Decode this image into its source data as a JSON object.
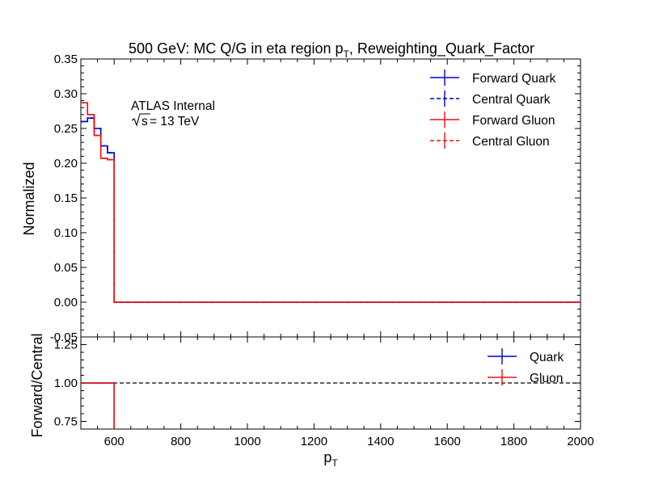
{
  "chart_data": [
    {
      "panel": "main",
      "type": "line",
      "title_main": "500 GeV: MC Q/G in eta region p",
      "title_sub": "T",
      "title_tail": ", Reweighting_Quark_Factor",
      "ylabel": "Normalized",
      "xlim": [
        500,
        2000
      ],
      "ylim": [
        -0.05,
        0.35
      ],
      "yticks": [
        "0.35",
        "0.30",
        "0.25",
        "0.20",
        "0.15",
        "0.10",
        "0.05",
        "0.00",
        "-0.05"
      ],
      "ytick_values": [
        0.35,
        0.3,
        0.25,
        0.2,
        0.15,
        0.1,
        0.05,
        0.0,
        -0.05
      ],
      "annotation": {
        "line1": "ATLAS Internal",
        "line2_root": "s",
        "line2_rest": " = 13 TeV"
      },
      "legend_position": "top-right",
      "bin_edges": [
        500,
        520,
        540,
        560,
        580,
        600,
        2000
      ],
      "series": [
        {
          "name": "Forward Quark",
          "color": "#0000cc",
          "style": "solid",
          "values": [
            0.26,
            0.265,
            0.25,
            0.225,
            0.215,
            0.0
          ]
        },
        {
          "name": "Central Quark",
          "color": "#0000cc",
          "style": "dashed",
          "values": [
            0.26,
            0.265,
            0.25,
            0.225,
            0.215,
            0.0
          ]
        },
        {
          "name": "Forward Gluon",
          "color": "#ee1111",
          "style": "solid",
          "values": [
            0.287,
            0.27,
            0.24,
            0.207,
            0.205,
            0.0
          ]
        },
        {
          "name": "Central Gluon",
          "color": "#ee1111",
          "style": "dashed",
          "values": [
            0.287,
            0.27,
            0.24,
            0.207,
            0.205,
            0.0
          ]
        }
      ]
    },
    {
      "panel": "ratio",
      "type": "line",
      "xlabel_main": "p",
      "xlabel_sub": "T",
      "ylabel": "Forward/Central",
      "xlim": [
        500,
        2000
      ],
      "ylim": [
        0.7,
        1.3
      ],
      "yticks": [
        "1.25",
        "1.00",
        "0.75"
      ],
      "ytick_values": [
        1.25,
        1.0,
        0.75
      ],
      "xticks": [
        "600",
        "800",
        "1000",
        "1200",
        "1400",
        "1600",
        "1800",
        "2000"
      ],
      "xtick_values": [
        600,
        800,
        1000,
        1200,
        1400,
        1600,
        1800,
        2000
      ],
      "reference_line": 1.0,
      "legend_position": "top-right",
      "series": [
        {
          "name": "Quark",
          "color": "#0000cc",
          "x": [
            500,
            600
          ],
          "values": [
            1.0,
            1.0
          ],
          "drop_at": 600
        },
        {
          "name": "Gluon",
          "color": "#ee1111",
          "x": [
            500,
            600
          ],
          "values": [
            1.0,
            1.0
          ],
          "drop_at": 600
        }
      ]
    }
  ]
}
